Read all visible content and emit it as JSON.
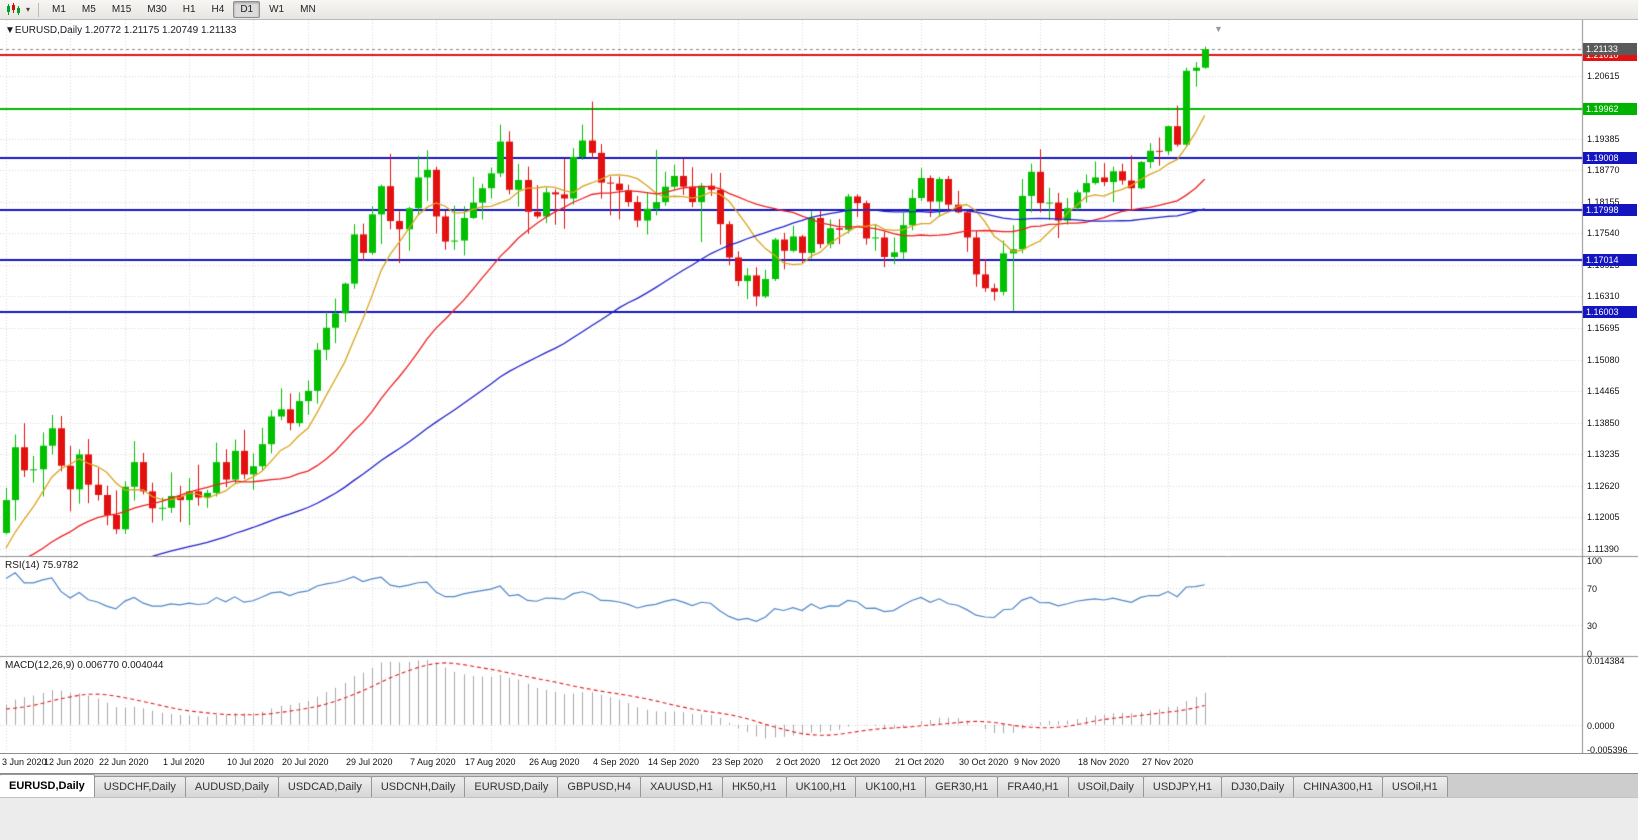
{
  "toolbar": {
    "dropdown_glyph": "▾",
    "timeframes": [
      "M1",
      "M5",
      "M15",
      "M30",
      "H1",
      "H4",
      "D1",
      "W1",
      "MN"
    ],
    "active_timeframe": "D1"
  },
  "chart_header": {
    "collapse_glyph": "▼",
    "title": "EURUSD,Daily",
    "ohlc": "1.20772 1.21175 1.20749 1.21133"
  },
  "rsi": {
    "label": "RSI(14)",
    "value": "75.9782",
    "axis_ticks": [
      "100",
      "70",
      "30",
      "0"
    ],
    "levels": [
      70,
      30
    ],
    "range": [
      0,
      100
    ]
  },
  "macd": {
    "label": "MACD(12,26,9)",
    "values": "0.006770 0.004044",
    "axis_ticks": [
      "0.014384",
      "0.0000",
      "-0.005396"
    ],
    "range": [
      -0.005396,
      0.014384
    ]
  },
  "price_axis": {
    "ticks": [
      "1.20615",
      "1.19385",
      "1.18770",
      "1.18155",
      "1.17540",
      "1.16925",
      "1.16310",
      "1.15695",
      "1.15080",
      "1.14465",
      "1.13850",
      "1.13235",
      "1.12620",
      "1.12005",
      "1.11390"
    ],
    "current_price": "1.21133"
  },
  "levels": [
    {
      "price": 1.2101,
      "label": "1.21010",
      "color": "#e31212",
      "type": "resistance"
    },
    {
      "price": 1.19962,
      "label": "1.19962",
      "color": "#00b300",
      "type": "support"
    },
    {
      "price": 1.19008,
      "label": "1.19008",
      "color": "#1515c0",
      "type": "support"
    },
    {
      "price": 1.17998,
      "label": "1.17998",
      "color": "#1515c0",
      "type": "support"
    },
    {
      "price": 1.17014,
      "label": "1.17014",
      "color": "#1515c0",
      "type": "support"
    },
    {
      "price": 1.16003,
      "label": "1.16003",
      "color": "#1515c0",
      "type": "support"
    }
  ],
  "tabs": {
    "items": [
      "EURUSD,Daily",
      "USDCHF,Daily",
      "AUDUSD,Daily",
      "USDCAD,Daily",
      "USDCNH,Daily",
      "EURUSD,Daily",
      "GBPUSD,H4",
      "XAUUSD,H1",
      "HK50,H1",
      "UK100,H1",
      "UK100,H1",
      "GER30,H1",
      "FRA40,H1",
      "USOil,Daily",
      "USDJPY,H1",
      "DJ30,Daily",
      "CHINA300,H1",
      "USOil,H1"
    ],
    "active_index": 0
  },
  "colors": {
    "bull": "#00c000",
    "bear": "#e31010",
    "ma_fast": "#d9a520",
    "ma_mid": "#ee2222",
    "ma_slow": "#2222cc",
    "rsi_line": "#4f86c6",
    "macd_hist": "#a8a8a8",
    "macd_signal": "#e02020",
    "grid": "#d8d8d8",
    "bid_label_bg": "#5a5a5a"
  },
  "chart_data": [
    {
      "type": "candlestick",
      "symbol": "EURUSD",
      "timeframe": "Daily",
      "title": "EURUSD,Daily",
      "ylim": [
        1.1125,
        1.217
      ],
      "current_price": 1.21133,
      "x_ticks": [
        {
          "label": "3 Jun 2020",
          "index": 0
        },
        {
          "label": "12 Jun 2020",
          "index": 7
        },
        {
          "label": "22 Jun 2020",
          "index": 13
        },
        {
          "label": "1 Jul 2020",
          "index": 20
        },
        {
          "label": "10 Jul 2020",
          "index": 27
        },
        {
          "label": "20 Jul 2020",
          "index": 33
        },
        {
          "label": "29 Jul 2020",
          "index": 40
        },
        {
          "label": "7 Aug 2020",
          "index": 47
        },
        {
          "label": "17 Aug 2020",
          "index": 53
        },
        {
          "label": "26 Aug 2020",
          "index": 60
        },
        {
          "label": "4 Sep 2020",
          "index": 67
        },
        {
          "label": "14 Sep 2020",
          "index": 73
        },
        {
          "label": "23 Sep 2020",
          "index": 80
        },
        {
          "label": "2 Oct 2020",
          "index": 87
        },
        {
          "label": "12 Oct 2020",
          "index": 93
        },
        {
          "label": "21 Oct 2020",
          "index": 100
        },
        {
          "label": "30 Oct 2020",
          "index": 107
        },
        {
          "label": "9 Nov 2020",
          "index": 113
        },
        {
          "label": "18 Nov 2020",
          "index": 120
        },
        {
          "label": "27 Nov 2020",
          "index": 127
        }
      ],
      "dates": [
        "2020.06.03",
        "2020.06.04",
        "2020.06.05",
        "2020.06.08",
        "2020.06.09",
        "2020.06.10",
        "2020.06.11",
        "2020.06.12",
        "2020.06.15",
        "2020.06.16",
        "2020.06.17",
        "2020.06.18",
        "2020.06.19",
        "2020.06.22",
        "2020.06.23",
        "2020.06.24",
        "2020.06.25",
        "2020.06.26",
        "2020.06.29",
        "2020.06.30",
        "2020.07.01",
        "2020.07.02",
        "2020.07.03",
        "2020.07.06",
        "2020.07.07",
        "2020.07.08",
        "2020.07.09",
        "2020.07.10",
        "2020.07.13",
        "2020.07.14",
        "2020.07.15",
        "2020.07.16",
        "2020.07.17",
        "2020.07.20",
        "2020.07.21",
        "2020.07.22",
        "2020.07.23",
        "2020.07.24",
        "2020.07.27",
        "2020.07.28",
        "2020.07.29",
        "2020.07.30",
        "2020.07.31",
        "2020.08.03",
        "2020.08.04",
        "2020.08.05",
        "2020.08.06",
        "2020.08.07",
        "2020.08.10",
        "2020.08.11",
        "2020.08.12",
        "2020.08.13",
        "2020.08.14",
        "2020.08.17",
        "2020.08.18",
        "2020.08.19",
        "2020.08.20",
        "2020.08.21",
        "2020.08.24",
        "2020.08.25",
        "2020.08.26",
        "2020.08.27",
        "2020.08.28",
        "2020.08.31",
        "2020.09.01",
        "2020.09.02",
        "2020.09.03",
        "2020.09.04",
        "2020.09.07",
        "2020.09.08",
        "2020.09.09",
        "2020.09.10",
        "2020.09.11",
        "2020.09.14",
        "2020.09.15",
        "2020.09.16",
        "2020.09.17",
        "2020.09.18",
        "2020.09.21",
        "2020.09.22",
        "2020.09.23",
        "2020.09.24",
        "2020.09.25",
        "2020.09.28",
        "2020.09.29",
        "2020.09.30",
        "2020.10.01",
        "2020.10.02",
        "2020.10.05",
        "2020.10.06",
        "2020.10.07",
        "2020.10.08",
        "2020.10.09",
        "2020.10.12",
        "2020.10.13",
        "2020.10.14",
        "2020.10.15",
        "2020.10.16",
        "2020.10.19",
        "2020.10.20",
        "2020.10.21",
        "2020.10.22",
        "2020.10.23",
        "2020.10.26",
        "2020.10.27",
        "2020.10.28",
        "2020.10.29",
        "2020.10.30",
        "2020.11.02",
        "2020.11.03",
        "2020.11.04",
        "2020.11.05",
        "2020.11.06",
        "2020.11.09",
        "2020.11.10",
        "2020.11.11",
        "2020.11.12",
        "2020.11.13",
        "2020.11.16",
        "2020.11.17",
        "2020.11.18",
        "2020.11.19",
        "2020.11.20",
        "2020.11.23",
        "2020.11.24",
        "2020.11.25",
        "2020.11.26",
        "2020.11.27",
        "2020.11.30",
        "2020.12.01",
        "2020.12.02",
        "2020.12.03"
      ],
      "open": [
        1.117,
        1.1234,
        1.1337,
        1.1292,
        1.1294,
        1.134,
        1.1374,
        1.1301,
        1.1255,
        1.1323,
        1.1264,
        1.1244,
        1.1205,
        1.1177,
        1.126,
        1.1308,
        1.1251,
        1.1218,
        1.1219,
        1.1242,
        1.1234,
        1.1251,
        1.1239,
        1.1248,
        1.1308,
        1.1274,
        1.133,
        1.1284,
        1.13,
        1.1343,
        1.1397,
        1.1411,
        1.1384,
        1.1427,
        1.1447,
        1.1527,
        1.157,
        1.1598,
        1.1656,
        1.1752,
        1.1716,
        1.1791,
        1.1846,
        1.1778,
        1.1762,
        1.1803,
        1.1863,
        1.1878,
        1.1787,
        1.1738,
        1.174,
        1.1784,
        1.1814,
        1.1842,
        1.1871,
        1.1933,
        1.1839,
        1.1858,
        1.1796,
        1.1787,
        1.1834,
        1.183,
        1.1822,
        1.1903,
        1.1935,
        1.1911,
        1.1853,
        1.1851,
        1.1838,
        1.1815,
        1.1779,
        1.1802,
        1.1815,
        1.1845,
        1.1866,
        1.1845,
        1.1815,
        1.1847,
        1.1839,
        1.1772,
        1.1707,
        1.1661,
        1.1672,
        1.1631,
        1.1665,
        1.1742,
        1.172,
        1.1748,
        1.1716,
        1.1784,
        1.1733,
        1.1764,
        1.1761,
        1.1826,
        1.1813,
        1.1744,
        1.1746,
        1.1708,
        1.1717,
        1.177,
        1.1823,
        1.1862,
        1.1816,
        1.186,
        1.181,
        1.1795,
        1.1746,
        1.1674,
        1.1647,
        1.164,
        1.1715,
        1.1723,
        1.1827,
        1.1874,
        1.1813,
        1.1814,
        1.1779,
        1.1803,
        1.1834,
        1.1852,
        1.1863,
        1.1854,
        1.1875,
        1.1857,
        1.1842,
        1.1893,
        1.1915,
        1.1914,
        1.1963,
        1.1927,
        1.2071,
        1.2077
      ],
      "high": [
        1.1258,
        1.1362,
        1.1384,
        1.132,
        1.1366,
        1.14,
        1.1398,
        1.134,
        1.1333,
        1.1353,
        1.1296,
        1.1262,
        1.1253,
        1.1271,
        1.1349,
        1.1326,
        1.1268,
        1.1239,
        1.1288,
        1.1262,
        1.1277,
        1.1303,
        1.1254,
        1.1346,
        1.1333,
        1.1352,
        1.1371,
        1.1325,
        1.1375,
        1.1409,
        1.1452,
        1.1442,
        1.1444,
        1.1467,
        1.154,
        1.1601,
        1.1627,
        1.1658,
        1.1772,
        1.1773,
        1.1807,
        1.1849,
        1.1909,
        1.1797,
        1.1806,
        1.1905,
        1.1916,
        1.1884,
        1.1798,
        1.1808,
        1.1807,
        1.1864,
        1.1851,
        1.1882,
        1.1966,
        1.1953,
        1.1889,
        1.1884,
        1.1848,
        1.1843,
        1.184,
        1.19,
        1.192,
        1.1966,
        1.2011,
        1.1928,
        1.1865,
        1.1865,
        1.1849,
        1.1827,
        1.1834,
        1.1917,
        1.1874,
        1.1888,
        1.19,
        1.1883,
        1.1852,
        1.1871,
        1.1872,
        1.1778,
        1.1719,
        1.1686,
        1.1688,
        1.1683,
        1.1745,
        1.1755,
        1.1769,
        1.1751,
        1.1797,
        1.1798,
        1.1781,
        1.1782,
        1.1831,
        1.183,
        1.1818,
        1.1772,
        1.1758,
        1.1746,
        1.1794,
        1.184,
        1.1881,
        1.1867,
        1.1864,
        1.1866,
        1.1837,
        1.18,
        1.1759,
        1.1704,
        1.1656,
        1.174,
        1.177,
        1.186,
        1.189,
        1.1918,
        1.1843,
        1.1833,
        1.1823,
        1.1839,
        1.1869,
        1.1894,
        1.1891,
        1.1884,
        1.189,
        1.1906,
        1.1895,
        1.193,
        1.1941,
        1.1964,
        1.2003,
        1.2077,
        1.2088,
        1.2118
      ],
      "low": [
        1.1167,
        1.1194,
        1.1279,
        1.1268,
        1.1241,
        1.1323,
        1.129,
        1.1212,
        1.1227,
        1.1228,
        1.1233,
        1.1185,
        1.1168,
        1.1168,
        1.1233,
        1.1245,
        1.119,
        1.1194,
        1.1209,
        1.1191,
        1.1185,
        1.1223,
        1.1219,
        1.1241,
        1.1259,
        1.1266,
        1.1275,
        1.1254,
        1.1292,
        1.1325,
        1.139,
        1.137,
        1.1377,
        1.14,
        1.1422,
        1.1507,
        1.154,
        1.1581,
        1.1646,
        1.17,
        1.1712,
        1.1733,
        1.1762,
        1.1696,
        1.172,
        1.1791,
        1.1817,
        1.1754,
        1.1722,
        1.1722,
        1.1711,
        1.1782,
        1.1781,
        1.1822,
        1.1864,
        1.183,
        1.1806,
        1.1753,
        1.1783,
        1.1774,
        1.1771,
        1.1763,
        1.181,
        1.1897,
        1.1899,
        1.1822,
        1.1789,
        1.1781,
        1.1806,
        1.1766,
        1.1752,
        1.1789,
        1.1808,
        1.184,
        1.1829,
        1.1805,
        1.1737,
        1.1827,
        1.1732,
        1.1692,
        1.1651,
        1.1626,
        1.1612,
        1.1628,
        1.1661,
        1.1684,
        1.1717,
        1.1695,
        1.1705,
        1.1725,
        1.1725,
        1.1733,
        1.1754,
        1.1786,
        1.1732,
        1.172,
        1.1688,
        1.1694,
        1.1703,
        1.176,
        1.1817,
        1.1786,
        1.1786,
        1.18,
        1.1793,
        1.1718,
        1.165,
        1.164,
        1.1623,
        1.1633,
        1.1603,
        1.1715,
        1.1795,
        1.1795,
        1.178,
        1.1745,
        1.1771,
        1.1799,
        1.1814,
        1.1849,
        1.1846,
        1.1815,
        1.1849,
        1.18,
        1.184,
        1.1881,
        1.1886,
        1.1907,
        1.1923,
        1.1923,
        1.204,
        1.2075
      ],
      "close": [
        1.1234,
        1.1337,
        1.1292,
        1.1294,
        1.134,
        1.1374,
        1.1301,
        1.1255,
        1.1323,
        1.1264,
        1.1244,
        1.1205,
        1.1177,
        1.126,
        1.1308,
        1.1251,
        1.1218,
        1.1219,
        1.1242,
        1.1234,
        1.1251,
        1.1239,
        1.1248,
        1.1308,
        1.1274,
        1.133,
        1.1284,
        1.13,
        1.1343,
        1.1397,
        1.1411,
        1.1384,
        1.1427,
        1.1447,
        1.1527,
        1.157,
        1.1598,
        1.1656,
        1.1752,
        1.1716,
        1.1791,
        1.1846,
        1.1778,
        1.1762,
        1.1803,
        1.1863,
        1.1878,
        1.1787,
        1.1738,
        1.174,
        1.1784,
        1.1814,
        1.1842,
        1.1871,
        1.1933,
        1.1839,
        1.1858,
        1.1796,
        1.1787,
        1.1834,
        1.183,
        1.1822,
        1.1903,
        1.1935,
        1.1911,
        1.1853,
        1.1851,
        1.1838,
        1.1815,
        1.1779,
        1.1802,
        1.1815,
        1.1845,
        1.1866,
        1.1845,
        1.1815,
        1.1847,
        1.1839,
        1.1772,
        1.1707,
        1.1661,
        1.1672,
        1.1631,
        1.1665,
        1.1742,
        1.172,
        1.1748,
        1.1716,
        1.1784,
        1.1733,
        1.1764,
        1.1761,
        1.1826,
        1.1813,
        1.1744,
        1.1746,
        1.1708,
        1.1717,
        1.177,
        1.1823,
        1.1862,
        1.1816,
        1.186,
        1.181,
        1.1795,
        1.1746,
        1.1674,
        1.1647,
        1.164,
        1.1715,
        1.1723,
        1.1827,
        1.1874,
        1.1813,
        1.1814,
        1.1779,
        1.1803,
        1.1834,
        1.1852,
        1.1863,
        1.1854,
        1.1875,
        1.1857,
        1.1842,
        1.1893,
        1.1915,
        1.1914,
        1.1963,
        1.1927,
        1.2071,
        1.2077,
        1.2113
      ]
    },
    {
      "type": "line",
      "name": "RSI(14)",
      "period": 14,
      "derived_from": "close",
      "current_value": 75.9782,
      "ylim": [
        0,
        100
      ],
      "levels": [
        70,
        30
      ]
    },
    {
      "type": "bar",
      "name": "MACD(12,26,9)",
      "params": [
        12,
        26,
        9
      ],
      "main_value": 0.00677,
      "signal_value": 0.004044,
      "derived_from": "close",
      "ylim": [
        -0.005396,
        0.014384
      ]
    }
  ]
}
